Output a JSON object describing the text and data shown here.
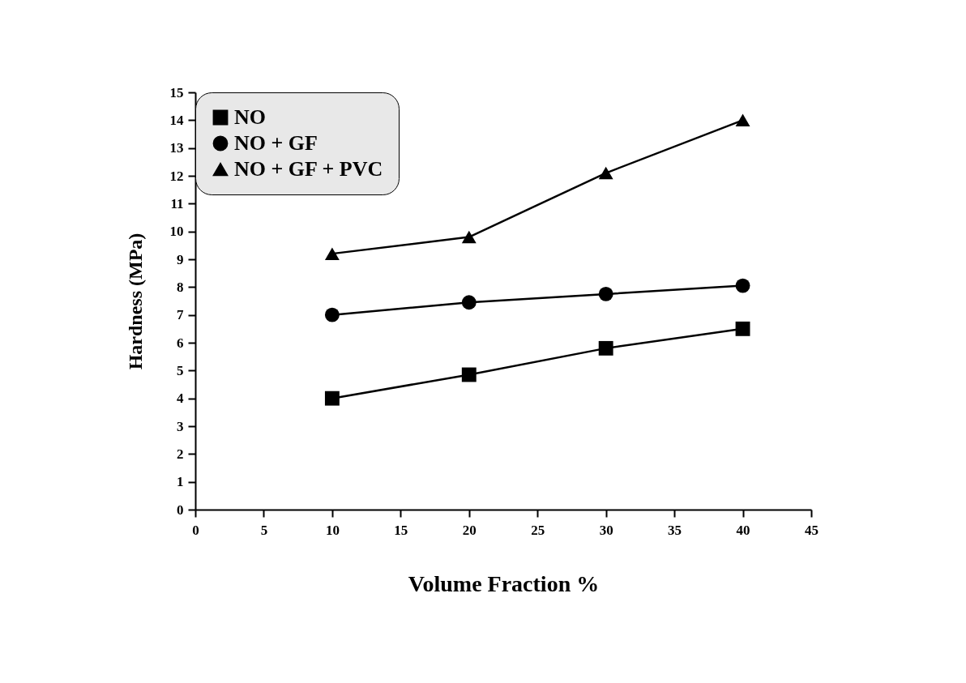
{
  "chart_data": {
    "type": "line",
    "xlabel": "Volume Fraction %",
    "ylabel": "Hardness (MPa)",
    "x": [
      10,
      20,
      30,
      40
    ],
    "series": [
      {
        "name": "NO",
        "color": "#000000",
        "marker": "square",
        "values": [
          4.0,
          4.85,
          5.8,
          6.5
        ]
      },
      {
        "name": "NO + GF",
        "color": "#000000",
        "marker": "circle",
        "values": [
          7.0,
          7.45,
          7.75,
          8.05
        ]
      },
      {
        "name": "NO + GF + PVC",
        "color": "#000000",
        "marker": "triangle",
        "values": [
          9.2,
          9.8,
          12.1,
          14.0
        ]
      }
    ],
    "xlim": [
      0,
      45
    ],
    "xticks": [
      0,
      5,
      10,
      15,
      20,
      25,
      30,
      35,
      40,
      45
    ],
    "ylim": [
      0,
      15
    ],
    "yticks": [
      0,
      1,
      2,
      3,
      4,
      5,
      6,
      7,
      8,
      9,
      10,
      11,
      12,
      13,
      14,
      15
    ],
    "grid": false,
    "legend": "top left"
  }
}
